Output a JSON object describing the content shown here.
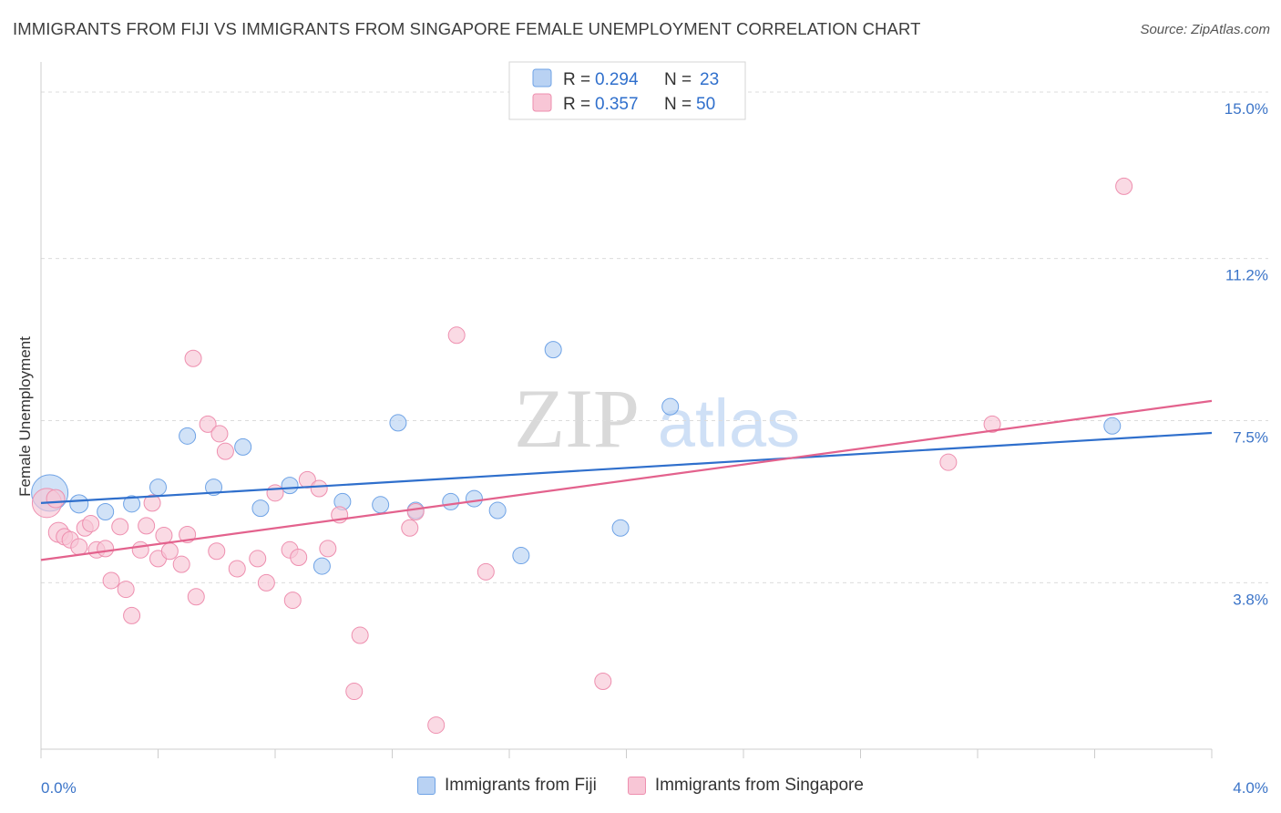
{
  "title": "IMMIGRANTS FROM FIJI VS IMMIGRANTS FROM SINGAPORE FEMALE UNEMPLOYMENT CORRELATION CHART",
  "source": "Source: ZipAtlas.com",
  "watermark": {
    "zip": "ZIP",
    "atlas": "atlas"
  },
  "chart_data": {
    "type": "scatter",
    "ylabel": "Female Unemployment",
    "xlim": [
      0.0,
      4.0
    ],
    "ylim": [
      0.0,
      15.5
    ],
    "x_tick_labels": [
      {
        "value": 0.0,
        "label": "0.0%"
      },
      {
        "value": 4.0,
        "label": "4.0%"
      }
    ],
    "y_ticks": [
      {
        "value": 3.8,
        "label": "3.8%"
      },
      {
        "value": 7.5,
        "label": "7.5%"
      },
      {
        "value": 11.2,
        "label": "11.2%"
      },
      {
        "value": 15.0,
        "label": "15.0%"
      }
    ],
    "legend": {
      "r_label": "R =",
      "n_label": "N =",
      "entries": [
        {
          "r": "0.294",
          "n": "23"
        },
        {
          "r": "0.357",
          "n": "50"
        }
      ]
    },
    "series": [
      {
        "name": "Immigrants from Fiji",
        "color": "#6fa3e6",
        "fill": "#b9d2f3",
        "line_color": "#2f6fcc",
        "trend": [
          [
            0.0,
            5.62
          ],
          [
            4.0,
            7.22
          ]
        ],
        "points": [
          [
            0.03,
            5.85,
            20
          ],
          [
            0.13,
            5.6,
            10
          ],
          [
            0.22,
            5.42,
            9
          ],
          [
            0.31,
            5.6,
            9
          ],
          [
            0.4,
            5.98,
            9
          ],
          [
            0.5,
            7.15,
            9
          ],
          [
            0.59,
            5.98,
            9
          ],
          [
            0.69,
            6.9,
            9
          ],
          [
            0.75,
            5.5,
            9
          ],
          [
            0.85,
            6.02,
            9
          ],
          [
            0.96,
            4.18,
            9
          ],
          [
            1.03,
            5.65,
            9
          ],
          [
            1.16,
            5.58,
            9
          ],
          [
            1.22,
            7.45,
            9
          ],
          [
            1.28,
            5.45,
            9
          ],
          [
            1.4,
            5.65,
            9
          ],
          [
            1.48,
            5.72,
            9
          ],
          [
            1.56,
            5.45,
            9
          ],
          [
            1.64,
            4.42,
            9
          ],
          [
            1.75,
            9.12,
            9
          ],
          [
            1.98,
            5.05,
            9
          ],
          [
            2.15,
            7.82,
            9
          ],
          [
            3.66,
            7.38,
            9
          ]
        ]
      },
      {
        "name": "Immigrants from Singapore",
        "color": "#ee8faf",
        "fill": "#f8c6d6",
        "line_color": "#e3628d",
        "trend": [
          [
            0.0,
            4.32
          ],
          [
            4.0,
            7.95
          ]
        ],
        "points": [
          [
            0.02,
            5.62,
            16
          ],
          [
            0.05,
            5.72,
            10
          ],
          [
            0.06,
            4.95,
            11
          ],
          [
            0.08,
            4.85,
            9
          ],
          [
            0.1,
            4.78,
            9
          ],
          [
            0.13,
            4.62,
            9
          ],
          [
            0.15,
            5.05,
            9
          ],
          [
            0.17,
            5.15,
            9
          ],
          [
            0.19,
            4.55,
            9
          ],
          [
            0.22,
            4.58,
            9
          ],
          [
            0.24,
            3.85,
            9
          ],
          [
            0.27,
            5.08,
            9
          ],
          [
            0.29,
            3.65,
            9
          ],
          [
            0.31,
            3.05,
            9
          ],
          [
            0.34,
            4.55,
            9
          ],
          [
            0.36,
            5.1,
            9
          ],
          [
            0.38,
            5.62,
            9
          ],
          [
            0.4,
            4.35,
            9
          ],
          [
            0.42,
            4.88,
            9
          ],
          [
            0.44,
            4.52,
            9
          ],
          [
            0.48,
            4.22,
            9
          ],
          [
            0.5,
            4.9,
            9
          ],
          [
            0.52,
            8.92,
            9
          ],
          [
            0.53,
            3.48,
            9
          ],
          [
            0.57,
            7.42,
            9
          ],
          [
            0.6,
            4.52,
            9
          ],
          [
            0.61,
            7.2,
            9
          ],
          [
            0.63,
            6.8,
            9
          ],
          [
            0.67,
            4.12,
            9
          ],
          [
            0.74,
            4.35,
            9
          ],
          [
            0.77,
            3.8,
            9
          ],
          [
            0.8,
            5.85,
            9
          ],
          [
            0.85,
            4.55,
            9
          ],
          [
            0.86,
            3.4,
            9
          ],
          [
            0.88,
            4.38,
            9
          ],
          [
            0.91,
            6.15,
            9
          ],
          [
            0.95,
            5.95,
            9
          ],
          [
            0.98,
            4.58,
            9
          ],
          [
            1.02,
            5.35,
            9
          ],
          [
            1.07,
            1.32,
            9
          ],
          [
            1.09,
            2.6,
            9
          ],
          [
            1.26,
            5.05,
            9
          ],
          [
            1.28,
            5.42,
            9
          ],
          [
            1.35,
            0.55,
            9
          ],
          [
            1.42,
            9.45,
            9
          ],
          [
            1.52,
            4.05,
            9
          ],
          [
            1.92,
            1.55,
            9
          ],
          [
            3.1,
            6.55,
            9
          ],
          [
            3.25,
            7.42,
            9
          ],
          [
            3.7,
            12.85,
            9
          ]
        ]
      }
    ]
  }
}
